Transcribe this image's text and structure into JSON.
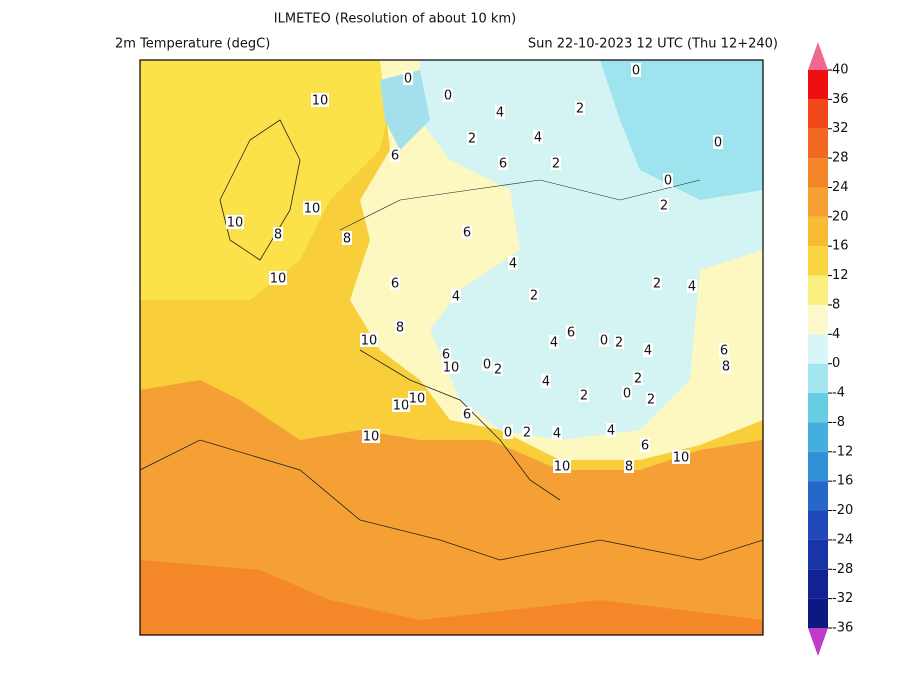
{
  "header": {
    "title": "ILMETEO (Resolution of about 10 km)",
    "variable": "2m Temperature (degC)",
    "valid_time": "Sun 22-10-2023 12 UTC (Thu 12+240)"
  },
  "colorbar": {
    "ticks": [
      40,
      36,
      32,
      28,
      24,
      20,
      16,
      12,
      8,
      4,
      0,
      -4,
      -8,
      -12,
      -16,
      -20,
      -24,
      -28,
      -32,
      -36
    ],
    "band_colors": [
      "#ee1010",
      "#f04818",
      "#f26820",
      "#f48428",
      "#f5a030",
      "#f7bc34",
      "#f9d640",
      "#fbee80",
      "#fdf9cc",
      "#d8f6f6",
      "#a4e6ef",
      "#66cde2",
      "#44aede",
      "#3290d6",
      "#2668ca",
      "#2048b8",
      "#1834a6",
      "#122292",
      "#0e1882"
    ],
    "over_color": "#f06890",
    "under_color": "#c03cc8"
  },
  "map": {
    "contour_labels": [
      10,
      0,
      0,
      4,
      2,
      0,
      2,
      4,
      0,
      6,
      6,
      2,
      0,
      2,
      10,
      10,
      8,
      8,
      6,
      4,
      10,
      6,
      2,
      2,
      4,
      4,
      8,
      10,
      4,
      6,
      0,
      2,
      4,
      6,
      8,
      6,
      10,
      0,
      2,
      4,
      2,
      0,
      2,
      2,
      10,
      10,
      6,
      10,
      0,
      2,
      4,
      4,
      6,
      10,
      10,
      8
    ]
  }
}
